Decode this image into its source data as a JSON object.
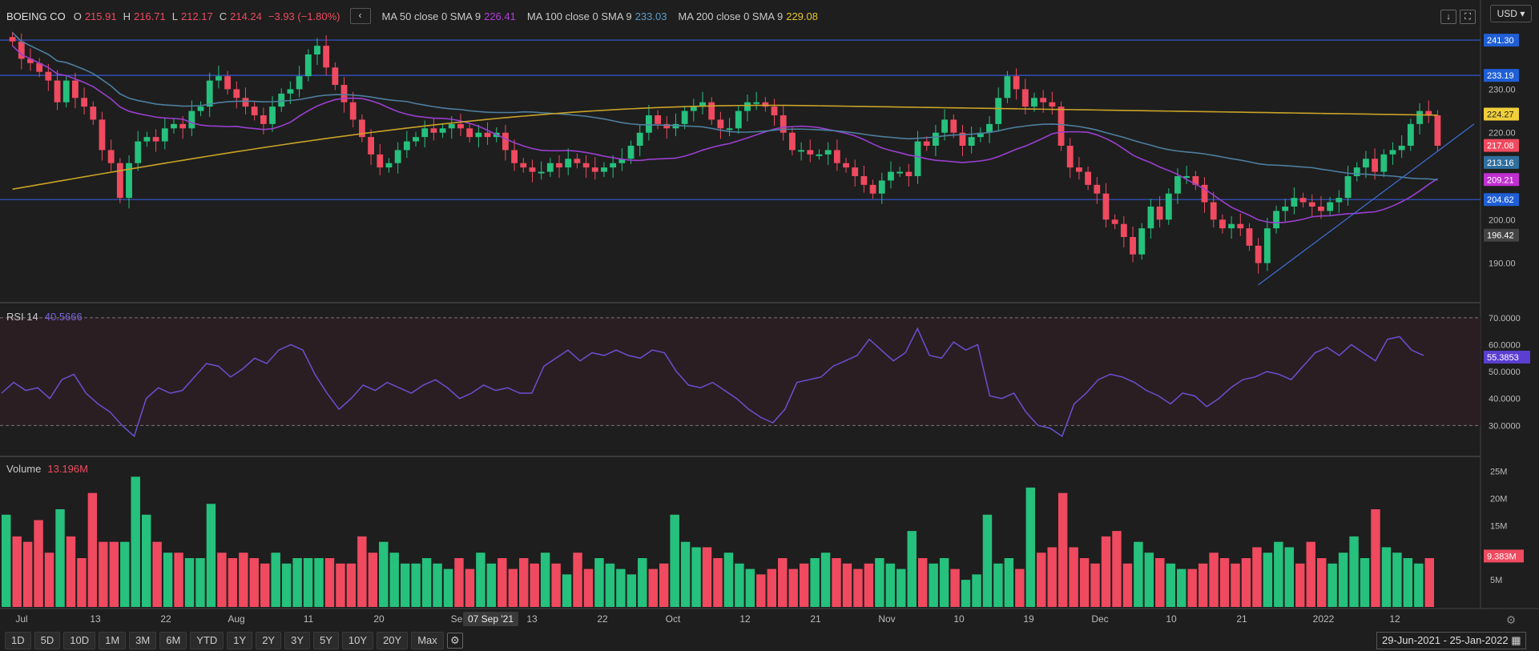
{
  "header": {
    "ticker": "BOEING CO",
    "open_label": "O",
    "open": "215.91",
    "high_label": "H",
    "high": "216.71",
    "low_label": "L",
    "low": "212.17",
    "close_label": "C",
    "close": "214.24",
    "change": "−3.93 (−1.80%)",
    "ma50_label": "MA 50 close 0 SMA 9",
    "ma50_value": "226.41",
    "ma100_label": "MA 100 close 0 SMA 9",
    "ma100_value": "233.03",
    "ma200_label": "MA 200 close 0 SMA 9",
    "ma200_value": "229.08",
    "back_label": "‹",
    "download_icon": "↓",
    "fullscreen_icon": "⛶",
    "currency": "USD"
  },
  "rsi_header": {
    "label": "RSI 14",
    "value": "40.5666"
  },
  "volume_header": {
    "label": "Volume",
    "value": "13.196M"
  },
  "range_buttons": [
    "1D",
    "5D",
    "10D",
    "1M",
    "3M",
    "6M",
    "YTD",
    "1Y",
    "2Y",
    "3Y",
    "5Y",
    "10Y",
    "20Y",
    "Max"
  ],
  "date_range": "29-Jun-2021 - 25-Jan-2022",
  "crosshair_date": "07 Sep '21",
  "colors": {
    "up": "#26c17d",
    "down": "#ef4a5f",
    "ma50": "#9b3fd0",
    "ma100": "#4d7fa0",
    "ma200": "#c9a227",
    "rsi": "#6b4fd1",
    "hline": "#3558d6",
    "trend": "#3f6fd9"
  },
  "chart_data": [
    {
      "type": "candlestick",
      "title": "BOEING CO",
      "x_ticks": [
        "Jul",
        "13",
        "22",
        "Aug",
        "11",
        "20",
        "Se",
        "13",
        "22",
        "Oct",
        "12",
        "21",
        "Nov",
        "10",
        "19",
        "Dec",
        "10",
        "21",
        "2022",
        "12"
      ],
      "y_ticks": [
        "190.00",
        "200.00",
        "210.00",
        "220.00",
        "230.00"
      ],
      "ylim": [
        182,
        245
      ],
      "price_labels": [
        {
          "value": "241.30",
          "color": "#1f5fd6"
        },
        {
          "value": "233.19",
          "color": "#1f5fd6"
        },
        {
          "value": "224.27",
          "color": "#f0cf3a"
        },
        {
          "value": "217.08",
          "color": "#ef4a5f"
        },
        {
          "value": "213.16",
          "color": "#2f6f9f"
        },
        {
          "value": "209.21",
          "color": "#c030d0"
        },
        {
          "value": "204.62",
          "color": "#1f5fd6"
        },
        {
          "value": "196.42",
          "color": "#444"
        }
      ],
      "horizontal_levels": [
        241.3,
        233.19,
        204.62
      ],
      "close": [
        241,
        237,
        236,
        234,
        232,
        227,
        232,
        228,
        226,
        223,
        216,
        213,
        205,
        213,
        218,
        219,
        218,
        221,
        222,
        221,
        225,
        226,
        232,
        233,
        230,
        228,
        226,
        224,
        222,
        226,
        229,
        230,
        233,
        238,
        240,
        235,
        231,
        227,
        223,
        219,
        215,
        212,
        213,
        216,
        218,
        219,
        221,
        220,
        221,
        222,
        221,
        219,
        220,
        219,
        220,
        216,
        213,
        212,
        211,
        211,
        213,
        212,
        214,
        213,
        212,
        211,
        212,
        213,
        214,
        217,
        220,
        224,
        222,
        221,
        222,
        225,
        226,
        227,
        223,
        221,
        221,
        225,
        227,
        227,
        226,
        224,
        220,
        216,
        216,
        215,
        215,
        216,
        213,
        212,
        210,
        208,
        206,
        209,
        211,
        211,
        210,
        218,
        217,
        220,
        223,
        220,
        217,
        219,
        220,
        222,
        228,
        233,
        230,
        226,
        228,
        227,
        226,
        217,
        212,
        211,
        208,
        206,
        200,
        199,
        196,
        192,
        198,
        203,
        200,
        206,
        210,
        210,
        208,
        204,
        200,
        198,
        199,
        198,
        194,
        190,
        198,
        202,
        203,
        205,
        204,
        203,
        202,
        204,
        205,
        210,
        212,
        214,
        211,
        215,
        216,
        217,
        222,
        225,
        224,
        217
      ]
    },
    {
      "type": "line",
      "title": "RSI 14",
      "y_ticks": [
        "30.0000",
        "40.0000",
        "50.0000",
        "60.0000",
        "70.0000"
      ],
      "ylim": [
        20,
        75
      ],
      "current_label": "55.3853",
      "values": [
        42,
        46,
        43,
        44,
        40,
        47,
        49,
        42,
        38,
        35,
        30,
        26,
        40,
        44,
        42,
        43,
        48,
        53,
        52,
        48,
        51,
        55,
        53,
        58,
        60,
        58,
        49,
        42,
        36,
        40,
        45,
        43,
        46,
        44,
        42,
        45,
        47,
        44,
        40,
        42,
        45,
        43,
        44,
        42,
        42,
        52,
        55,
        58,
        54,
        57,
        56,
        58,
        56,
        55,
        58,
        57,
        50,
        45,
        44,
        46,
        43,
        40,
        36,
        33,
        31,
        36,
        46,
        47,
        48,
        52,
        54,
        56,
        62,
        58,
        54,
        57,
        66,
        56,
        55,
        61,
        58,
        60,
        41,
        40,
        42,
        35,
        30,
        29,
        26,
        38,
        42,
        47,
        49,
        48,
        46,
        43,
        41,
        38,
        42,
        41,
        37,
        40,
        44,
        47,
        48,
        50,
        49,
        47,
        52,
        57,
        59,
        56,
        60,
        57,
        54,
        62,
        63,
        58,
        56
      ]
    },
    {
      "type": "bar",
      "title": "Volume",
      "y_ticks": [
        "5M",
        "10M",
        "15M",
        "20M",
        "25M"
      ],
      "ylim": [
        0,
        27
      ],
      "current_label": "9.383M",
      "values": [
        17,
        13,
        12,
        16,
        10,
        18,
        13,
        9,
        21,
        12,
        12,
        12,
        24,
        17,
        12,
        10,
        10,
        9,
        9,
        19,
        10,
        9,
        10,
        9,
        8,
        10,
        8,
        9,
        9,
        9,
        9,
        8,
        8,
        13,
        10,
        12,
        10,
        8,
        8,
        9,
        8,
        7,
        9,
        7,
        10,
        8,
        9,
        7,
        9,
        8,
        10,
        8,
        6,
        10,
        7,
        9,
        8,
        7,
        6,
        9,
        7,
        8,
        17,
        12,
        11,
        11,
        9,
        10,
        8,
        7,
        6,
        7,
        9,
        7,
        8,
        9,
        10,
        9,
        8,
        7,
        8,
        9,
        8,
        7,
        14,
        9,
        8,
        9,
        7,
        5,
        6,
        17,
        8,
        9,
        7,
        22,
        10,
        11,
        21,
        11,
        9,
        8,
        13,
        14,
        8,
        12,
        10,
        9,
        8,
        7,
        7,
        8,
        10,
        9,
        8,
        9,
        11,
        10,
        12,
        11,
        8,
        12,
        9,
        8,
        10,
        13,
        9,
        18,
        11,
        10,
        9,
        8,
        9
      ]
    }
  ]
}
